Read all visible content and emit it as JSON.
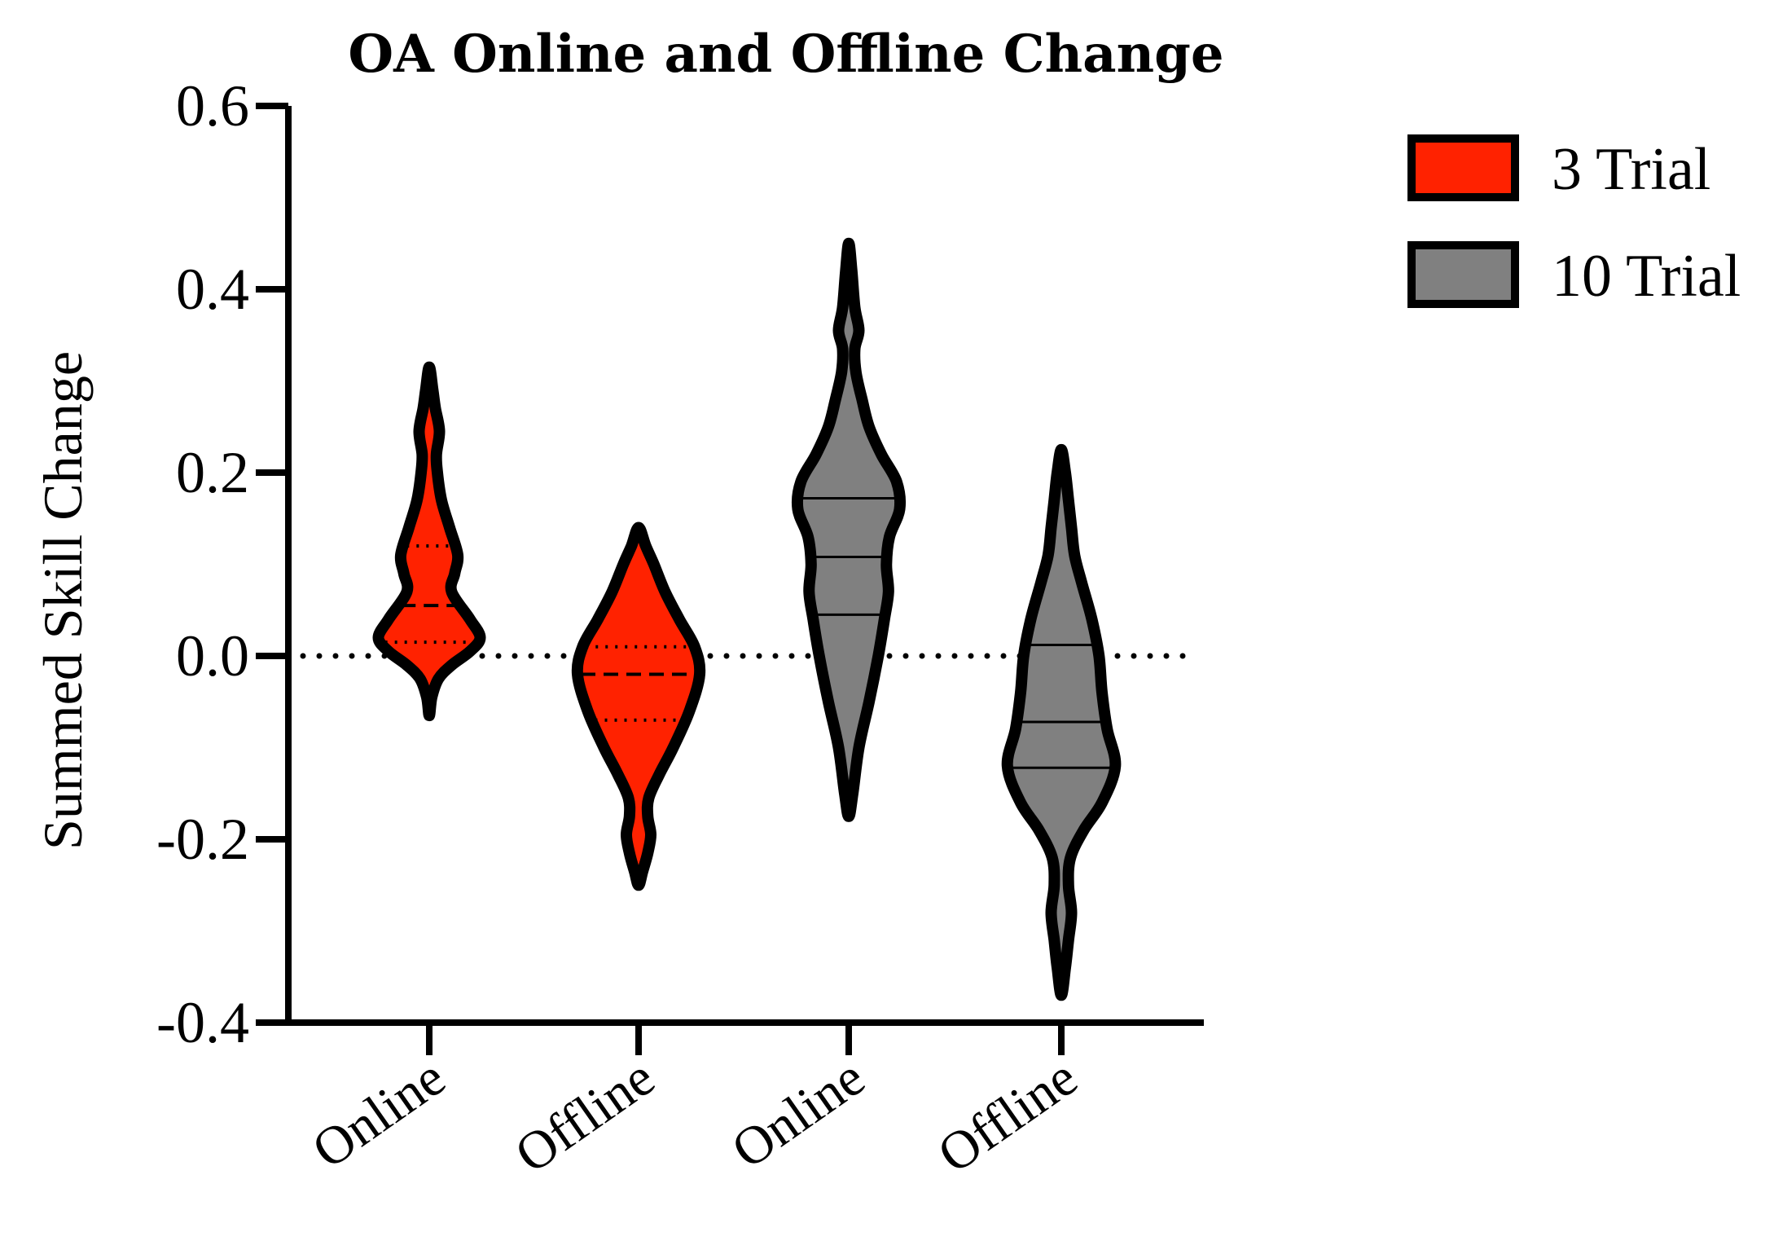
{
  "chart_data": {
    "type": "violin",
    "title": "OA Online and Offline Change",
    "xlabel": "",
    "ylabel": "Summed Skill Change",
    "ylim": [
      -0.4,
      0.6
    ],
    "yticks": [
      "-0.4",
      "-0.2",
      "0.0",
      "0.2",
      "0.4",
      "0.6"
    ],
    "reference_line": 0.0,
    "categories": [
      "Online",
      "Offline",
      "Online",
      "Offline"
    ],
    "legend": {
      "placement": "top-right",
      "entries": [
        {
          "label": "3 Trial",
          "color": "#ff2200"
        },
        {
          "label": "10 Trial",
          "color": "#808080"
        }
      ]
    },
    "violins": [
      {
        "category": "Online",
        "series": "3 Trial",
        "color": "#ff2200",
        "min": -0.065,
        "max": 0.315,
        "quartiles": [
          0.015,
          0.055,
          0.12
        ],
        "line_style": "dashed",
        "profile": [
          [
            -0.065,
            0.0
          ],
          [
            -0.045,
            0.025
          ],
          [
            -0.025,
            0.09
          ],
          [
            -0.01,
            0.22
          ],
          [
            0.005,
            0.4
          ],
          [
            0.02,
            0.5
          ],
          [
            0.04,
            0.4
          ],
          [
            0.07,
            0.22
          ],
          [
            0.09,
            0.25
          ],
          [
            0.11,
            0.28
          ],
          [
            0.14,
            0.2
          ],
          [
            0.17,
            0.12
          ],
          [
            0.2,
            0.08
          ],
          [
            0.22,
            0.07
          ],
          [
            0.245,
            0.1
          ],
          [
            0.27,
            0.06
          ],
          [
            0.29,
            0.035
          ],
          [
            0.315,
            0.0
          ]
        ]
      },
      {
        "category": "Offline",
        "series": "3 Trial",
        "color": "#ff2200",
        "min": -0.25,
        "max": 0.14,
        "quartiles": [
          -0.07,
          -0.02,
          0.01
        ],
        "line_style": "dashed",
        "profile": [
          [
            -0.25,
            0.0
          ],
          [
            -0.235,
            0.04
          ],
          [
            -0.215,
            0.09
          ],
          [
            -0.195,
            0.12
          ],
          [
            -0.175,
            0.09
          ],
          [
            -0.155,
            0.1
          ],
          [
            -0.13,
            0.2
          ],
          [
            -0.1,
            0.34
          ],
          [
            -0.06,
            0.5
          ],
          [
            -0.02,
            0.6
          ],
          [
            0.01,
            0.55
          ],
          [
            0.04,
            0.4
          ],
          [
            0.07,
            0.26
          ],
          [
            0.1,
            0.15
          ],
          [
            0.12,
            0.07
          ],
          [
            0.14,
            0.0
          ]
        ]
      },
      {
        "category": "Online",
        "series": "10 Trial",
        "color": "#808080",
        "min": -0.175,
        "max": 0.45,
        "quartiles": [
          0.045,
          0.108,
          0.172
        ],
        "line_style": "solid",
        "profile": [
          [
            -0.175,
            0.0
          ],
          [
            -0.15,
            0.04
          ],
          [
            -0.1,
            0.1
          ],
          [
            -0.05,
            0.2
          ],
          [
            0.0,
            0.29
          ],
          [
            0.04,
            0.35
          ],
          [
            0.07,
            0.39
          ],
          [
            0.1,
            0.37
          ],
          [
            0.13,
            0.4
          ],
          [
            0.16,
            0.5
          ],
          [
            0.19,
            0.47
          ],
          [
            0.22,
            0.32
          ],
          [
            0.25,
            0.2
          ],
          [
            0.28,
            0.13
          ],
          [
            0.31,
            0.07
          ],
          [
            0.335,
            0.06
          ],
          [
            0.355,
            0.1
          ],
          [
            0.38,
            0.06
          ],
          [
            0.42,
            0.03
          ],
          [
            0.45,
            0.0
          ]
        ]
      },
      {
        "category": "Offline",
        "series": "10 Trial",
        "color": "#808080",
        "min": -0.37,
        "max": 0.225,
        "quartiles": [
          -0.122,
          -0.072,
          0.012
        ],
        "line_style": "solid",
        "profile": [
          [
            -0.37,
            0.0
          ],
          [
            -0.34,
            0.04
          ],
          [
            -0.31,
            0.07
          ],
          [
            -0.28,
            0.1
          ],
          [
            -0.25,
            0.07
          ],
          [
            -0.22,
            0.09
          ],
          [
            -0.19,
            0.22
          ],
          [
            -0.16,
            0.4
          ],
          [
            -0.12,
            0.53
          ],
          [
            -0.08,
            0.45
          ],
          [
            -0.04,
            0.4
          ],
          [
            0.0,
            0.37
          ],
          [
            0.04,
            0.3
          ],
          [
            0.08,
            0.2
          ],
          [
            0.11,
            0.13
          ],
          [
            0.14,
            0.1
          ],
          [
            0.17,
            0.07
          ],
          [
            0.2,
            0.04
          ],
          [
            0.225,
            0.0
          ]
        ]
      }
    ]
  }
}
